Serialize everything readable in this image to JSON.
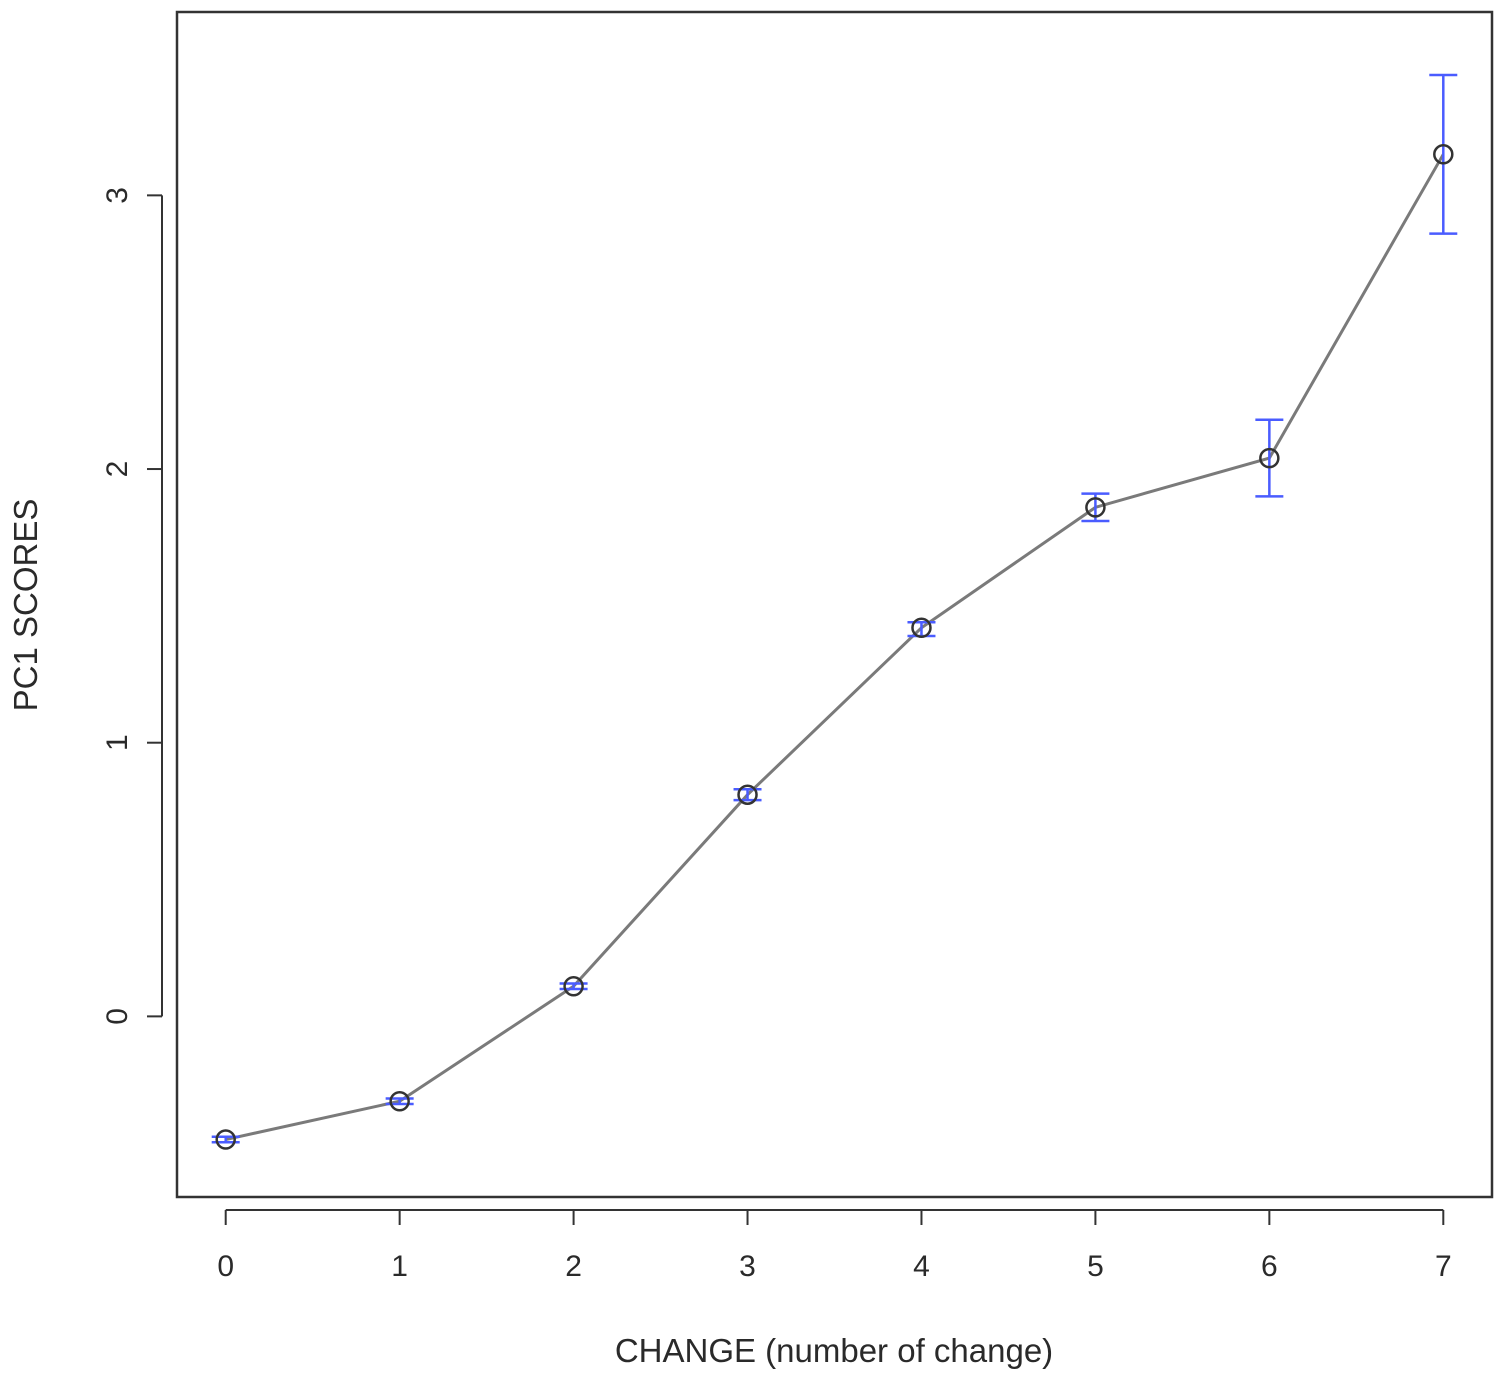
{
  "chart_data": {
    "type": "line",
    "title": "",
    "xlabel": "CHANGE (number of change)",
    "ylabel": "PC1 SCORES",
    "x_ticks": [
      0,
      1,
      2,
      3,
      4,
      5,
      6,
      7
    ],
    "y_ticks": [
      0,
      1,
      2,
      3
    ],
    "xlim": [
      -0.28,
      7.28
    ],
    "ylim": [
      -0.66,
      3.67
    ],
    "grid": false,
    "series": [
      {
        "x": [
          0,
          1,
          2,
          3,
          4,
          5,
          6,
          7
        ],
        "y": [
          -0.45,
          -0.31,
          0.11,
          0.81,
          1.42,
          1.86,
          2.04,
          3.15
        ],
        "err_low": [
          -0.46,
          -0.32,
          0.1,
          0.79,
          1.39,
          1.81,
          1.9,
          2.86
        ],
        "err_high": [
          -0.44,
          -0.3,
          0.12,
          0.83,
          1.44,
          1.91,
          2.18,
          3.44
        ]
      }
    ],
    "colors": {
      "line": "#7a7a7a",
      "marker": "#333333",
      "error_bar": "#4a5cff",
      "axis": "#333333"
    }
  }
}
